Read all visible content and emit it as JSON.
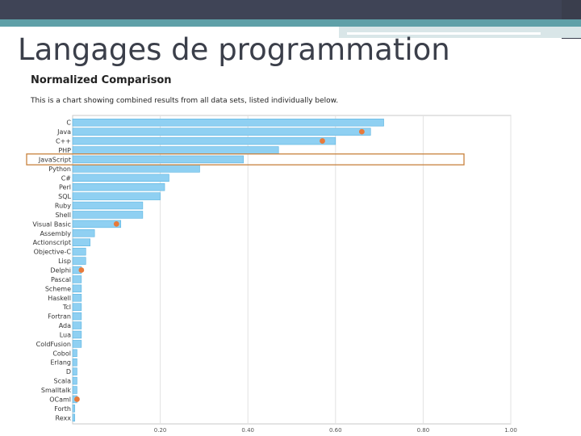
{
  "slide": {
    "title": "Langages de programmation"
  },
  "chart_data": {
    "type": "bar",
    "orientation": "horizontal",
    "title": "Normalized Comparison",
    "subtitle": "This is a chart showing combined results from all data sets, listed individually below.",
    "categories": [
      "C",
      "Java",
      "C++",
      "PHP",
      "JavaScript",
      "Python",
      "C#",
      "Perl",
      "SQL",
      "Ruby",
      "Shell",
      "Visual Basic",
      "Assembly",
      "Actionscript",
      "Objective-C",
      "Lisp",
      "Delphi",
      "Pascal",
      "Scheme",
      "Haskell",
      "Tcl",
      "Fortran",
      "Ada",
      "Lua",
      "ColdFusion",
      "Cobol",
      "Erlang",
      "D",
      "Scala",
      "Smalltalk",
      "OCaml",
      "Forth",
      "Rexx"
    ],
    "values": [
      0.71,
      0.68,
      0.6,
      0.47,
      0.39,
      0.29,
      0.22,
      0.21,
      0.2,
      0.16,
      0.16,
      0.11,
      0.05,
      0.04,
      0.03,
      0.03,
      0.02,
      0.02,
      0.02,
      0.02,
      0.02,
      0.02,
      0.02,
      0.02,
      0.02,
      0.01,
      0.01,
      0.01,
      0.01,
      0.01,
      0.01,
      0.005,
      0.005
    ],
    "markers": [
      {
        "category": "Java",
        "value": 0.66
      },
      {
        "category": "C++",
        "value": 0.57
      },
      {
        "category": "Visual Basic",
        "value": 0.1
      },
      {
        "category": "Delphi",
        "value": 0.02
      },
      {
        "category": "OCaml",
        "value": 0.01
      }
    ],
    "highlighted": "JavaScript",
    "xlim": [
      0,
      1.0
    ],
    "xticks": [
      "0.20",
      "0.40",
      "0.60",
      "0.80",
      "1.00"
    ],
    "grid": true,
    "colors": {
      "bar": "#8fd0f2",
      "bar_edge": "#5ab3e0",
      "marker": "#e87a3a",
      "highlight": "#c8823e"
    }
  }
}
